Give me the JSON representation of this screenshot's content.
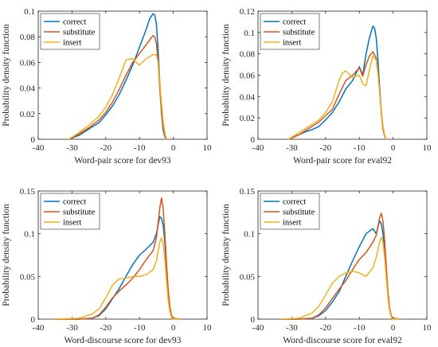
{
  "colors": {
    "correct": "#0072BD",
    "substitute": "#D95319",
    "insert": "#EDB120"
  },
  "chart_data": [
    {
      "type": "line",
      "xlabel": "Word-pair score for dev93",
      "ylabel": "Probability density function",
      "xlim": [
        -40,
        10
      ],
      "ylim": [
        0,
        0.1
      ],
      "xticks": [
        -40,
        -30,
        -20,
        -10,
        0,
        10
      ],
      "yticks": [
        0,
        0.02,
        0.04,
        0.06,
        0.08,
        0.1
      ],
      "ytick_labels": [
        "0",
        "0.02",
        "0.04",
        "0.06",
        "0.08",
        "0.1"
      ],
      "legend": "top-left",
      "grid": false,
      "series": [
        {
          "name": "correct",
          "color": "#0072BD",
          "x": [
            -31,
            -28,
            -25,
            -22,
            -20,
            -18,
            -16,
            -14,
            -12,
            -10,
            -8,
            -7,
            -6,
            -5.5,
            -5,
            -4.5,
            -4,
            -3.5,
            -3,
            -2.5,
            -2
          ],
          "y": [
            0,
            0.003,
            0.008,
            0.013,
            0.019,
            0.026,
            0.035,
            0.046,
            0.058,
            0.072,
            0.086,
            0.094,
            0.098,
            0.097,
            0.09,
            0.07,
            0.045,
            0.02,
            0.007,
            0.002,
            0
          ]
        },
        {
          "name": "substitute",
          "color": "#D95319",
          "x": [
            -31,
            -28,
            -25,
            -22,
            -20,
            -18,
            -16,
            -14,
            -12,
            -10,
            -8,
            -6,
            -5.5,
            -5,
            -4.5,
            -4,
            -3.5,
            -3,
            -2.5,
            -2
          ],
          "y": [
            0,
            0.004,
            0.009,
            0.015,
            0.021,
            0.029,
            0.039,
            0.05,
            0.06,
            0.067,
            0.074,
            0.081,
            0.08,
            0.075,
            0.06,
            0.04,
            0.022,
            0.01,
            0.003,
            0
          ]
        },
        {
          "name": "insert",
          "color": "#EDB120",
          "x": [
            -31,
            -28,
            -25,
            -22,
            -20,
            -18,
            -16,
            -14,
            -12,
            -11,
            -10,
            -8,
            -6,
            -5,
            -4.5,
            -4,
            -3.5,
            -3,
            -2.5,
            -2
          ],
          "y": [
            0,
            0.005,
            0.011,
            0.018,
            0.025,
            0.035,
            0.048,
            0.062,
            0.063,
            0.06,
            0.058,
            0.063,
            0.066,
            0.066,
            0.06,
            0.045,
            0.028,
            0.014,
            0.005,
            0
          ]
        }
      ]
    },
    {
      "type": "line",
      "xlabel": "Word-pair score for eval92",
      "ylabel": "Probability density function",
      "xlim": [
        -40,
        10
      ],
      "ylim": [
        0,
        0.12
      ],
      "xticks": [
        -40,
        -30,
        -20,
        -10,
        0,
        10
      ],
      "yticks": [
        0,
        0.02,
        0.04,
        0.06,
        0.08,
        0.1,
        0.12
      ],
      "ytick_labels": [
        "0",
        "0.02",
        "0.04",
        "0.06",
        "0.08",
        "0.1",
        "0.12"
      ],
      "legend": "top-left",
      "grid": false,
      "series": [
        {
          "name": "correct",
          "color": "#0072BD",
          "x": [
            -31,
            -28,
            -26,
            -24,
            -22,
            -20,
            -18,
            -16,
            -14,
            -12,
            -10,
            -9,
            -8,
            -7,
            -6,
            -5.5,
            -5,
            -4.5,
            -4,
            -3.5,
            -3,
            -2.5,
            -2
          ],
          "y": [
            0,
            0.004,
            0.007,
            0.009,
            0.012,
            0.018,
            0.025,
            0.035,
            0.047,
            0.055,
            0.068,
            0.06,
            0.08,
            0.095,
            0.106,
            0.104,
            0.095,
            0.075,
            0.05,
            0.027,
            0.01,
            0.003,
            0
          ]
        },
        {
          "name": "substitute",
          "color": "#D95319",
          "x": [
            -31,
            -28,
            -26,
            -24,
            -22,
            -20,
            -18,
            -16,
            -14,
            -12,
            -10,
            -9,
            -8,
            -7,
            -6,
            -5,
            -4.5,
            -4,
            -3.5,
            -3,
            -2.5,
            -2
          ],
          "y": [
            0,
            0.004,
            0.008,
            0.012,
            0.016,
            0.022,
            0.028,
            0.042,
            0.055,
            0.06,
            0.067,
            0.059,
            0.07,
            0.078,
            0.082,
            0.076,
            0.065,
            0.045,
            0.025,
            0.01,
            0.003,
            0
          ]
        },
        {
          "name": "insert",
          "color": "#EDB120",
          "x": [
            -31,
            -28,
            -26,
            -24,
            -22,
            -20,
            -18,
            -16,
            -15,
            -14,
            -12,
            -10,
            -9,
            -8,
            -7,
            -6,
            -5,
            -4.5,
            -4,
            -3.5,
            -3,
            -2.5,
            -2
          ],
          "y": [
            0,
            0.006,
            0.01,
            0.014,
            0.018,
            0.025,
            0.035,
            0.055,
            0.062,
            0.064,
            0.058,
            0.06,
            0.052,
            0.05,
            0.065,
            0.078,
            0.074,
            0.062,
            0.045,
            0.028,
            0.013,
            0.004,
            0
          ]
        }
      ]
    },
    {
      "type": "line",
      "xlabel": "Word-discourse score for dev93",
      "ylabel": "Probability density function",
      "xlim": [
        -40,
        10
      ],
      "ylim": [
        0,
        0.15
      ],
      "xticks": [
        -40,
        -30,
        -20,
        -10,
        0,
        10
      ],
      "yticks": [
        0,
        0.05,
        0.1,
        0.15
      ],
      "ytick_labels": [
        "0",
        "0.05",
        "0.1",
        "0.15"
      ],
      "legend": "top-left",
      "grid": false,
      "series": [
        {
          "name": "correct",
          "color": "#0072BD",
          "x": [
            -35,
            -28,
            -24,
            -22,
            -20,
            -18,
            -16,
            -14,
            -12,
            -10,
            -8,
            -6,
            -5,
            -4,
            -3.5,
            -3,
            -2.5,
            -2,
            -1.5,
            -1,
            -0.5,
            0,
            2
          ],
          "y": [
            0,
            0,
            0.001,
            0.004,
            0.012,
            0.024,
            0.036,
            0.05,
            0.064,
            0.075,
            0.082,
            0.09,
            0.1,
            0.12,
            0.118,
            0.11,
            0.09,
            0.06,
            0.03,
            0.012,
            0.004,
            0.001,
            0
          ]
        },
        {
          "name": "substitute",
          "color": "#D95319",
          "x": [
            -35,
            -28,
            -24,
            -22,
            -20,
            -18,
            -16,
            -14,
            -12,
            -10,
            -8,
            -6,
            -5,
            -4,
            -3.5,
            -3,
            -2.5,
            -2,
            -1.5,
            -1,
            -0.5,
            0,
            2
          ],
          "y": [
            0,
            0,
            0.001,
            0.005,
            0.014,
            0.025,
            0.033,
            0.04,
            0.048,
            0.058,
            0.07,
            0.08,
            0.095,
            0.13,
            0.142,
            0.13,
            0.1,
            0.065,
            0.035,
            0.014,
            0.004,
            0.001,
            0
          ]
        },
        {
          "name": "insert",
          "color": "#EDB120",
          "x": [
            -35,
            -28,
            -24,
            -22,
            -20,
            -18,
            -16,
            -14,
            -12,
            -10,
            -8,
            -6,
            -5,
            -4,
            -3.5,
            -3,
            -2.5,
            -2,
            -1.5,
            -1,
            -0.5,
            0,
            2
          ],
          "y": [
            0,
            0.001,
            0.006,
            0.012,
            0.025,
            0.04,
            0.047,
            0.048,
            0.05,
            0.05,
            0.052,
            0.058,
            0.068,
            0.09,
            0.095,
            0.088,
            0.07,
            0.045,
            0.022,
            0.008,
            0.002,
            0,
            0
          ]
        }
      ]
    },
    {
      "type": "line",
      "xlabel": "Word-discourse score for eval92",
      "ylabel": "Probability density function",
      "xlim": [
        -40,
        10
      ],
      "ylim": [
        0,
        0.15
      ],
      "xticks": [
        -40,
        -30,
        -20,
        -10,
        0,
        10
      ],
      "yticks": [
        0,
        0.05,
        0.1,
        0.15
      ],
      "ytick_labels": [
        "0",
        "0.05",
        "0.1",
        "0.15"
      ],
      "legend": "top-left",
      "grid": false,
      "series": [
        {
          "name": "correct",
          "color": "#0072BD",
          "x": [
            -33,
            -28,
            -24,
            -22,
            -20,
            -18,
            -16,
            -14,
            -12,
            -10,
            -8,
            -6,
            -5,
            -4,
            -3.5,
            -3,
            -2.5,
            -2,
            -1.5,
            -1,
            -0.5,
            0,
            2
          ],
          "y": [
            0,
            0,
            0.001,
            0.004,
            0.01,
            0.02,
            0.032,
            0.05,
            0.068,
            0.085,
            0.1,
            0.106,
            0.1,
            0.115,
            0.112,
            0.1,
            0.08,
            0.055,
            0.028,
            0.011,
            0.003,
            0.001,
            0
          ]
        },
        {
          "name": "substitute",
          "color": "#D95319",
          "x": [
            -33,
            -28,
            -24,
            -22,
            -20,
            -18,
            -16,
            -14,
            -12,
            -10,
            -8,
            -6,
            -5,
            -4,
            -3.5,
            -3,
            -2.5,
            -2,
            -1.5,
            -1,
            -0.5,
            0,
            2
          ],
          "y": [
            0,
            0,
            0.001,
            0.005,
            0.013,
            0.024,
            0.035,
            0.045,
            0.058,
            0.07,
            0.078,
            0.09,
            0.098,
            0.118,
            0.124,
            0.115,
            0.092,
            0.062,
            0.032,
            0.012,
            0.003,
            0.001,
            0
          ]
        },
        {
          "name": "insert",
          "color": "#EDB120",
          "x": [
            -33,
            -28,
            -24,
            -22,
            -20,
            -18,
            -16,
            -14,
            -12,
            -10,
            -8,
            -6,
            -5,
            -4,
            -3.5,
            -3,
            -2.5,
            -2,
            -1.5,
            -1,
            -0.5,
            0,
            2
          ],
          "y": [
            0,
            0.001,
            0.007,
            0.015,
            0.028,
            0.042,
            0.05,
            0.054,
            0.056,
            0.054,
            0.05,
            0.06,
            0.072,
            0.09,
            0.096,
            0.09,
            0.072,
            0.048,
            0.024,
            0.009,
            0.002,
            0,
            0
          ]
        }
      ]
    }
  ]
}
